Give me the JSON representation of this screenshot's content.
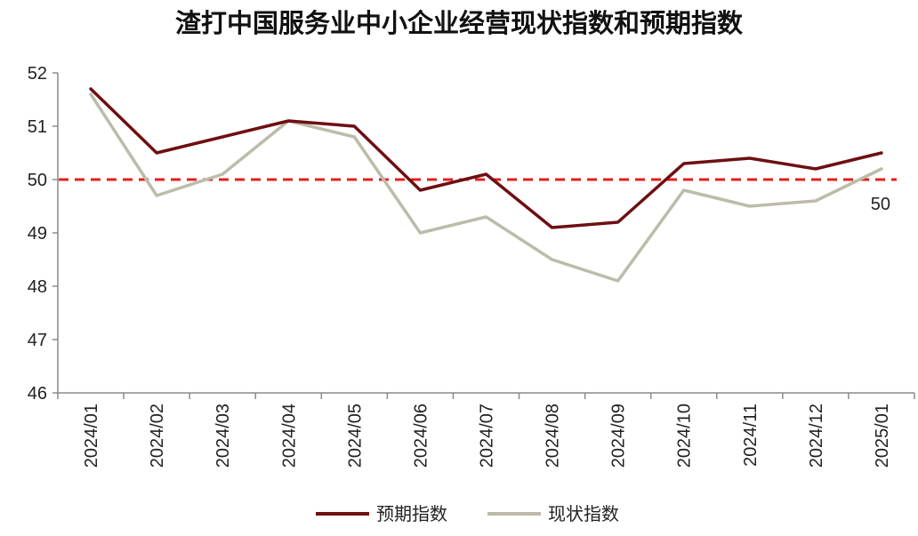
{
  "chart_data": {
    "type": "line",
    "title": "渣打中国服务业中小企业经营现状指数和预期指数",
    "xlabel": "",
    "ylabel": "",
    "categories": [
      "2024/01",
      "2024/02",
      "2024/03",
      "2024/04",
      "2024/05",
      "2024/06",
      "2024/07",
      "2024/08",
      "2024/09",
      "2024/10",
      "2024/11",
      "2024/12",
      "2025/01"
    ],
    "ylim": [
      46,
      52
    ],
    "yticks": [
      "46",
      "47",
      "48",
      "49",
      "50",
      "51",
      "52"
    ],
    "grid": false,
    "legend_position": "bottom",
    "series": [
      {
        "name": "预期指数",
        "color": "#6e0f12",
        "values": [
          51.7,
          50.5,
          50.8,
          51.1,
          51.0,
          49.8,
          50.1,
          49.1,
          49.2,
          50.3,
          50.4,
          50.2,
          50.5
        ]
      },
      {
        "name": "现状指数",
        "color": "#bdbba9",
        "values": [
          51.6,
          49.7,
          50.1,
          51.1,
          50.8,
          49.0,
          49.3,
          48.5,
          48.1,
          49.8,
          49.5,
          49.6,
          50.2
        ]
      }
    ],
    "reference_line": {
      "value": 50,
      "label": "50",
      "color": "#e41e1e",
      "style": "dashed"
    }
  }
}
